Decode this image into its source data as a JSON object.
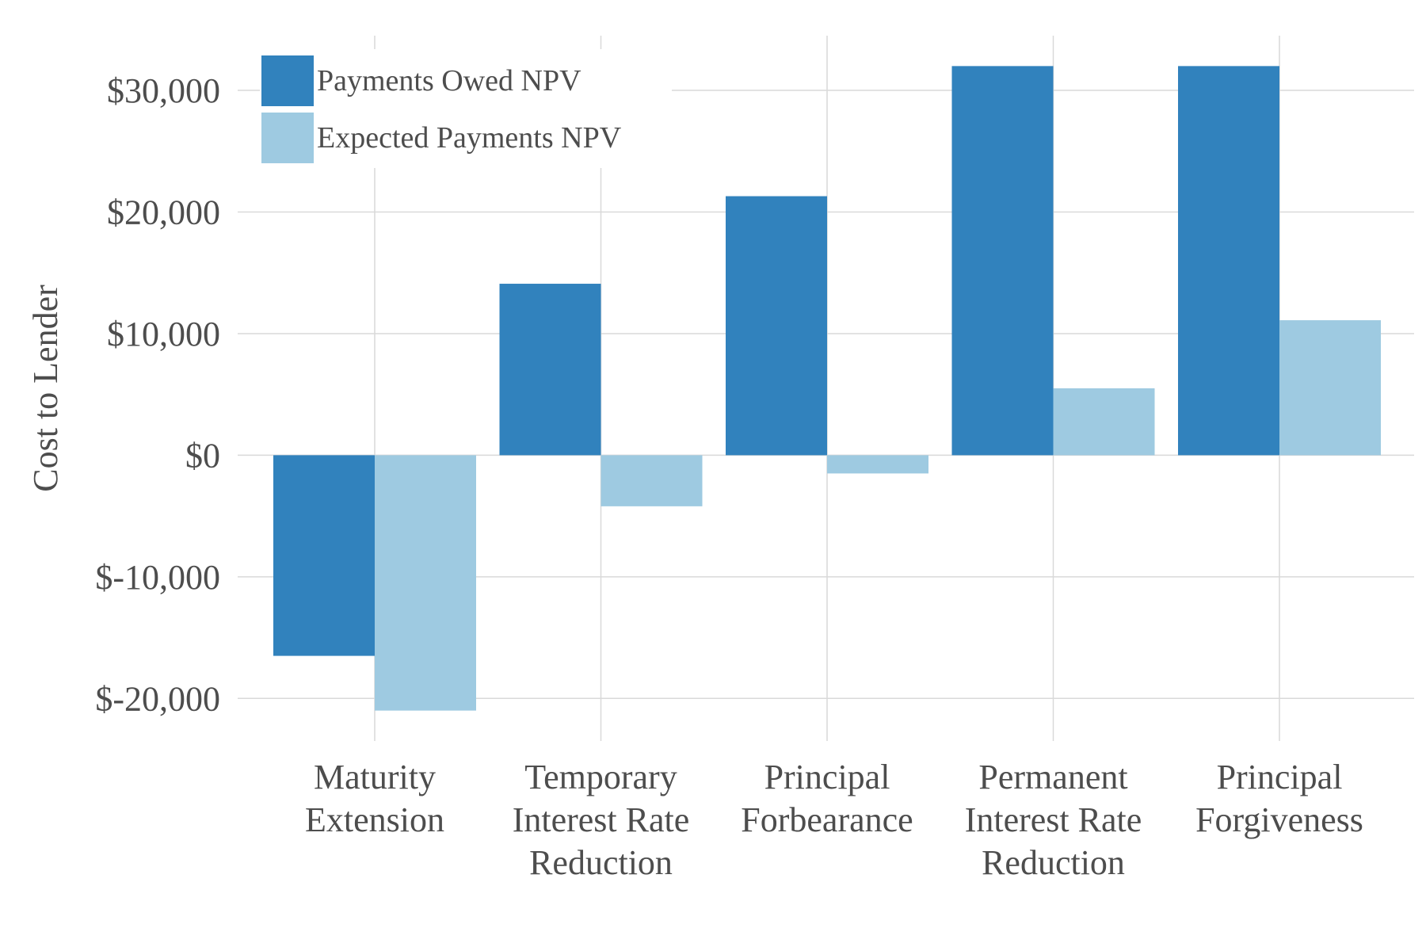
{
  "chart_data": {
    "type": "bar",
    "ylabel": "Cost to Lender",
    "ylim": [
      -23500,
      34500
    ],
    "yticks": [
      -20000,
      -10000,
      0,
      10000,
      20000,
      30000
    ],
    "ytick_labels": [
      "$-20,000",
      "$-10,000",
      "$0",
      "$10,000",
      "$20,000",
      "$30,000"
    ],
    "categories": [
      [
        "Maturity",
        "Extension"
      ],
      [
        "Temporary",
        "Interest Rate",
        "Reduction"
      ],
      [
        "Principal",
        "Forbearance"
      ],
      [
        "Permanent",
        "Interest Rate",
        "Reduction"
      ],
      [
        "Principal",
        "Forgiveness"
      ]
    ],
    "series": [
      {
        "name": "Payments Owed NPV",
        "color": "#3182bd",
        "values": [
          -16500,
          14100,
          21300,
          32000,
          32000
        ]
      },
      {
        "name": "Expected Payments NPV",
        "color": "#9ecae1",
        "values": [
          -21000,
          -4200,
          -1500,
          5500,
          11100
        ]
      }
    ],
    "legend": "top-left",
    "grid": true
  }
}
